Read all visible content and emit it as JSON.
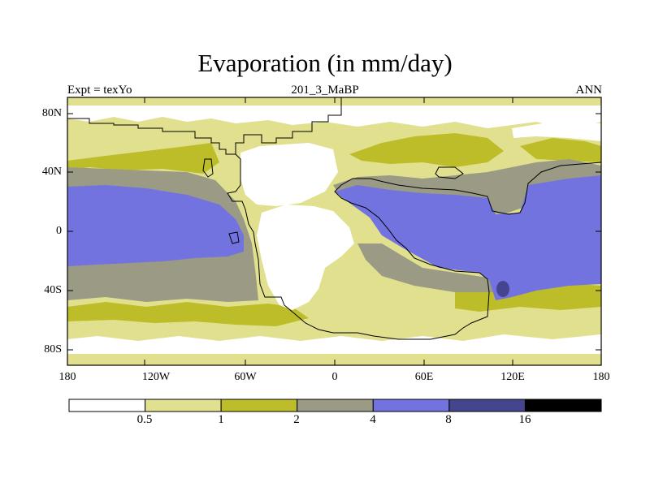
{
  "title": "Evaporation (in mm/day)",
  "left_label": "Expt = texYo",
  "center_label": "201_3_MaBP",
  "right_label": "ANN",
  "y_ticks": [
    "80N",
    "40N",
    "0",
    "40S",
    "80S"
  ],
  "x_ticks": [
    "180",
    "120W",
    "60W",
    "0",
    "60E",
    "120E",
    "180"
  ],
  "colorbar": {
    "labels": [
      "0.5",
      "1",
      "2",
      "4",
      "8",
      "16"
    ],
    "colors": [
      "#ffffff",
      "#e0e08e",
      "#bdbd2a",
      "#9a9a85",
      "#7373e0",
      "#45458f",
      "#000000"
    ]
  },
  "map_colors": {
    "white": "#ffffff",
    "light": "#e0e08e",
    "olive": "#bdbd2a",
    "gray": "#9a9a85",
    "blue": "#7373e0",
    "dark": "#45458f"
  }
}
